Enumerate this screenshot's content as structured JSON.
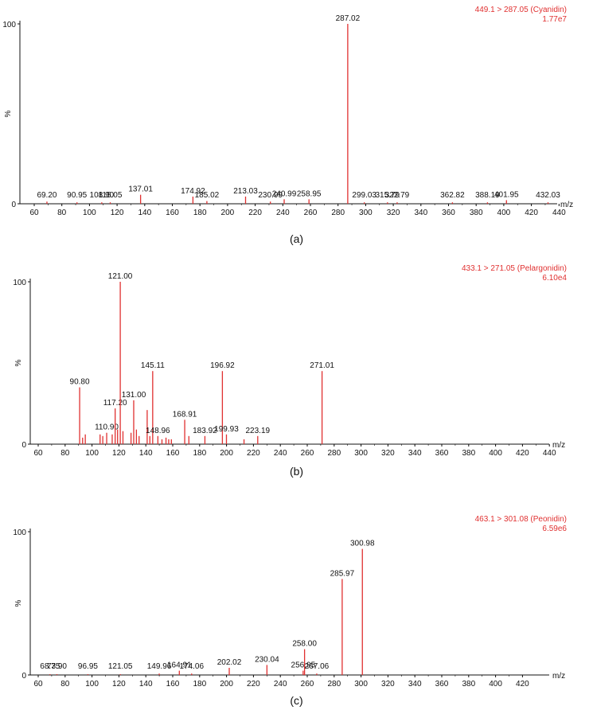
{
  "figure": {
    "captions": [
      "(a)",
      "(b)",
      "(c)"
    ]
  },
  "colors": {
    "peak": "#e03030",
    "header": "#e03030",
    "axis": "#111111",
    "label": "#111111"
  },
  "chart_data": [
    {
      "type": "bar",
      "subtype": "mass-spectrum",
      "header_line1": "449.1 > 287.05 (Cyanidin)",
      "header_line2": "1.77e7",
      "xlabel": "m/z",
      "ylabel": "%",
      "xlim": [
        50,
        440
      ],
      "ylim": [
        0,
        100
      ],
      "xticks": [
        60,
        80,
        100,
        120,
        140,
        160,
        180,
        200,
        220,
        240,
        260,
        280,
        300,
        320,
        340,
        360,
        380,
        400,
        420,
        440
      ],
      "yticks": [
        0,
        100
      ],
      "peaks": [
        {
          "mz": 69.2,
          "intensity": 1.2,
          "label": "69.20"
        },
        {
          "mz": 90.95,
          "intensity": 0.8,
          "label": "90.95"
        },
        {
          "mz": 108.9,
          "intensity": 0.8,
          "label": "108.90"
        },
        {
          "mz": 115.05,
          "intensity": 0.8,
          "label": "115.05"
        },
        {
          "mz": 137.01,
          "intensity": 5,
          "label": "137.01"
        },
        {
          "mz": 174.92,
          "intensity": 4,
          "label": "174.92"
        },
        {
          "mz": 185.02,
          "intensity": 1.5,
          "label": "185.02"
        },
        {
          "mz": 213.03,
          "intensity": 4,
          "label": "213.03"
        },
        {
          "mz": 230.99,
          "intensity": 1.2,
          "label": "230.99"
        },
        {
          "mz": 240.99,
          "intensity": 2.5,
          "label": "240.99"
        },
        {
          "mz": 258.95,
          "intensity": 2.5,
          "label": "258.95"
        },
        {
          "mz": 287.02,
          "intensity": 100,
          "label": "287.02"
        },
        {
          "mz": 299.03,
          "intensity": 0.8,
          "label": "299.03"
        },
        {
          "mz": 315.79,
          "intensity": 0.8,
          "label": "315.79"
        },
        {
          "mz": 322.79,
          "intensity": 0.8,
          "label": "322.79"
        },
        {
          "mz": 362.82,
          "intensity": 0.8,
          "label": "362.82"
        },
        {
          "mz": 388.19,
          "intensity": 0.8,
          "label": "388.19"
        },
        {
          "mz": 401.95,
          "intensity": 2,
          "label": "401.95"
        },
        {
          "mz": 432.03,
          "intensity": 0.8,
          "label": "432.03"
        }
      ]
    },
    {
      "type": "bar",
      "subtype": "mass-spectrum",
      "header_line1": "433.1 > 271.05 (Pelargonidin)",
      "header_line2": "6.10e4",
      "xlabel": "m/z",
      "ylabel": "%",
      "xlim": [
        50,
        440
      ],
      "ylim": [
        0,
        100
      ],
      "xticks": [
        60,
        80,
        100,
        120,
        140,
        160,
        180,
        200,
        220,
        240,
        260,
        280,
        300,
        320,
        340,
        360,
        380,
        400,
        420,
        440
      ],
      "yticks": [
        0,
        100
      ],
      "peaks": [
        {
          "mz": 90.8,
          "intensity": 35,
          "label": "90.80"
        },
        {
          "mz": 93,
          "intensity": 4,
          "label": ""
        },
        {
          "mz": 95,
          "intensity": 6,
          "label": ""
        },
        {
          "mz": 106,
          "intensity": 6,
          "label": ""
        },
        {
          "mz": 108,
          "intensity": 5,
          "label": ""
        },
        {
          "mz": 110.9,
          "intensity": 7,
          "label": "110.90"
        },
        {
          "mz": 115,
          "intensity": 6,
          "label": ""
        },
        {
          "mz": 117.2,
          "intensity": 22,
          "label": "117.20"
        },
        {
          "mz": 119,
          "intensity": 9,
          "label": ""
        },
        {
          "mz": 121,
          "intensity": 100,
          "label": "121.00"
        },
        {
          "mz": 123,
          "intensity": 8,
          "label": ""
        },
        {
          "mz": 129,
          "intensity": 7,
          "label": ""
        },
        {
          "mz": 131,
          "intensity": 27,
          "label": "131.00"
        },
        {
          "mz": 133,
          "intensity": 9,
          "label": ""
        },
        {
          "mz": 135,
          "intensity": 5,
          "label": ""
        },
        {
          "mz": 141,
          "intensity": 21,
          "label": ""
        },
        {
          "mz": 143,
          "intensity": 5,
          "label": ""
        },
        {
          "mz": 145.11,
          "intensity": 45,
          "label": "145.11"
        },
        {
          "mz": 148.96,
          "intensity": 5,
          "label": "148.96"
        },
        {
          "mz": 152,
          "intensity": 3,
          "label": ""
        },
        {
          "mz": 155,
          "intensity": 4,
          "label": ""
        },
        {
          "mz": 157,
          "intensity": 3,
          "label": ""
        },
        {
          "mz": 159,
          "intensity": 3,
          "label": ""
        },
        {
          "mz": 168.91,
          "intensity": 15,
          "label": "168.91"
        },
        {
          "mz": 172,
          "intensity": 5,
          "label": ""
        },
        {
          "mz": 183.92,
          "intensity": 5,
          "label": "183.92"
        },
        {
          "mz": 196.92,
          "intensity": 45,
          "label": "196.92"
        },
        {
          "mz": 199.93,
          "intensity": 6,
          "label": "199.93"
        },
        {
          "mz": 213,
          "intensity": 3,
          "label": ""
        },
        {
          "mz": 223.19,
          "intensity": 5,
          "label": "223.19"
        },
        {
          "mz": 271.01,
          "intensity": 45,
          "label": "271.01"
        }
      ]
    },
    {
      "type": "bar",
      "subtype": "mass-spectrum",
      "header_line1": "463.1 > 301.08 (Peonidin)",
      "header_line2": "6.59e6",
      "xlabel": "m/z",
      "ylabel": "%",
      "xlim": [
        50,
        440
      ],
      "ylim": [
        0,
        100
      ],
      "xticks": [
        60,
        80,
        100,
        120,
        140,
        160,
        180,
        200,
        220,
        240,
        260,
        280,
        300,
        320,
        340,
        360,
        380,
        400,
        420
      ],
      "yticks": [
        0,
        100
      ],
      "peaks": [
        {
          "mz": 68.75,
          "intensity": 0.5,
          "label": "68.75"
        },
        {
          "mz": 73.9,
          "intensity": 0.5,
          "label": "73.90"
        },
        {
          "mz": 96.95,
          "intensity": 0.5,
          "label": "96.95"
        },
        {
          "mz": 121.05,
          "intensity": 0.5,
          "label": "121.05"
        },
        {
          "mz": 149.96,
          "intensity": 1,
          "label": "149.96"
        },
        {
          "mz": 164.91,
          "intensity": 3,
          "label": "164.91"
        },
        {
          "mz": 174.06,
          "intensity": 1,
          "label": "174.06"
        },
        {
          "mz": 202.02,
          "intensity": 5,
          "label": "202.02"
        },
        {
          "mz": 230.04,
          "intensity": 7,
          "label": "230.04"
        },
        {
          "mz": 256.95,
          "intensity": 3,
          "label": "256.95"
        },
        {
          "mz": 258.0,
          "intensity": 18,
          "label": "258.00"
        },
        {
          "mz": 267.06,
          "intensity": 1,
          "label": "267.06"
        },
        {
          "mz": 285.97,
          "intensity": 67,
          "label": "285.97"
        },
        {
          "mz": 300.98,
          "intensity": 88,
          "label": "300.98"
        }
      ]
    }
  ]
}
